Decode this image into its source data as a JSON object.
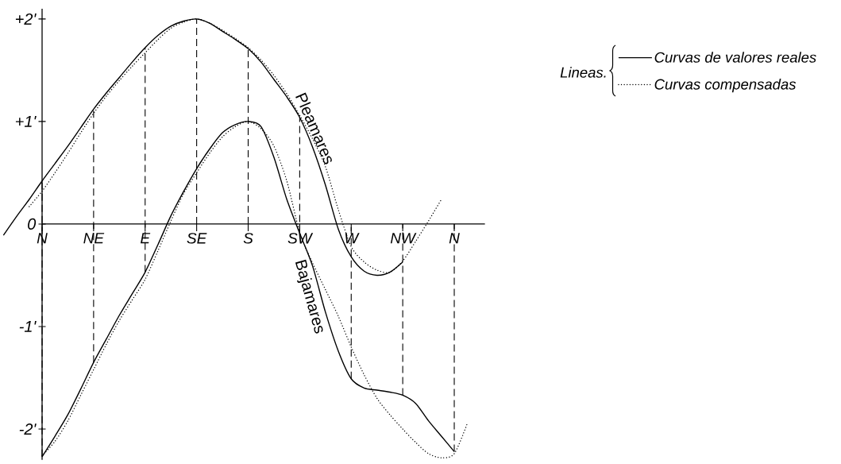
{
  "chart_data": {
    "type": "line",
    "legend_title": "Lineas.",
    "legend": "top right",
    "categories": [
      null,
      null,
      null,
      "N",
      null,
      null,
      null,
      "NE",
      null,
      null,
      null,
      "E",
      null,
      null,
      null,
      "SE",
      null,
      null,
      null,
      "S",
      null,
      null,
      null,
      "SW",
      null,
      null,
      null,
      "W",
      null,
      null,
      null,
      "NW",
      null,
      null,
      null,
      "N",
      null
    ],
    "ylim": [
      -2.3,
      2.1
    ],
    "yticks": [
      {
        "value": 2,
        "label": "+2'"
      },
      {
        "value": 1,
        "label": "+1'"
      },
      {
        "value": 0,
        "label": "0"
      },
      {
        "value": -1,
        "label": "-1'"
      },
      {
        "value": -2,
        "label": "-2'"
      }
    ],
    "series": [
      {
        "name": "Curvas de valores reales",
        "color": "#000000",
        "line_style": "solid",
        "values": [
          -0.11,
          0.07,
          0.24,
          0.42,
          0.59,
          0.76,
          0.94,
          1.12,
          1.28,
          1.43,
          1.58,
          1.72,
          1.84,
          1.93,
          1.98,
          2.0,
          1.96,
          1.88,
          1.8,
          1.71,
          1.58,
          1.41,
          1.24,
          1.04,
          0.75,
          0.38,
          -0.05,
          -0.32,
          -0.46,
          -0.5,
          -0.47,
          -0.37,
          null,
          null,
          null,
          null,
          null
        ]
      },
      {
        "name": "Curvas compensadas",
        "color": "#000000",
        "line_style": "dotted",
        "values": [
          null,
          null,
          0.17,
          0.32,
          0.5,
          0.69,
          0.89,
          1.08,
          1.25,
          1.4,
          1.54,
          1.67,
          1.8,
          1.91,
          1.97,
          2.0,
          1.96,
          1.89,
          1.81,
          1.72,
          1.6,
          1.45,
          1.27,
          1.06,
          0.83,
          0.56,
          0.14,
          -0.22,
          -0.37,
          -0.45,
          -0.47,
          -0.36,
          -0.17,
          0.03,
          0.24,
          null,
          null
        ]
      },
      {
        "color": "#000000",
        "line_style": "solid",
        "values": [
          null,
          null,
          null,
          -2.27,
          -2.07,
          -1.86,
          -1.61,
          -1.35,
          -1.12,
          -0.89,
          -0.68,
          -0.47,
          -0.2,
          0.08,
          0.32,
          0.54,
          0.73,
          0.89,
          0.97,
          1.0,
          0.95,
          0.65,
          0.24,
          -0.09,
          -0.41,
          -0.86,
          -1.24,
          -1.51,
          -1.6,
          -1.62,
          -1.64,
          -1.67,
          -1.75,
          -1.92,
          -2.07,
          -2.22,
          null
        ]
      },
      {
        "color": "#000000",
        "line_style": "dotted",
        "values": [
          null,
          null,
          null,
          -2.26,
          -2.12,
          -1.92,
          -1.67,
          -1.42,
          -1.17,
          -0.94,
          -0.74,
          -0.54,
          -0.26,
          0.03,
          0.3,
          0.5,
          0.69,
          0.85,
          0.95,
          1.0,
          0.93,
          0.76,
          0.42,
          -0.08,
          -0.38,
          -0.64,
          -0.9,
          -1.2,
          -1.47,
          -1.7,
          -1.86,
          -2.0,
          -2.13,
          -2.24,
          -2.28,
          -2.24,
          -1.95
        ]
      }
    ],
    "ref_lines": [
      {
        "axis": "x",
        "value": "NE",
        "line_style": "dashed",
        "color": "#000000"
      },
      {
        "axis": "x",
        "value": "E",
        "line_style": "dashed",
        "color": "#000000"
      },
      {
        "axis": "x",
        "value": "SE",
        "line_style": "dashed",
        "color": "#000000"
      },
      {
        "axis": "x",
        "value": "S",
        "line_style": "dashed",
        "color": "#000000"
      },
      {
        "axis": "x",
        "value": "SW",
        "line_style": "dashed",
        "color": "#000000"
      },
      {
        "axis": "x",
        "value": "W",
        "line_style": "dashed",
        "color": "#000000"
      },
      {
        "axis": "x",
        "value": "NW",
        "line_style": "dashed",
        "color": "#000000"
      },
      {
        "axis": "x",
        "value": "N",
        "line_style": "dashed",
        "color": "#000000"
      }
    ],
    "annotations": [
      "Pleamares",
      "Bajamares"
    ]
  }
}
